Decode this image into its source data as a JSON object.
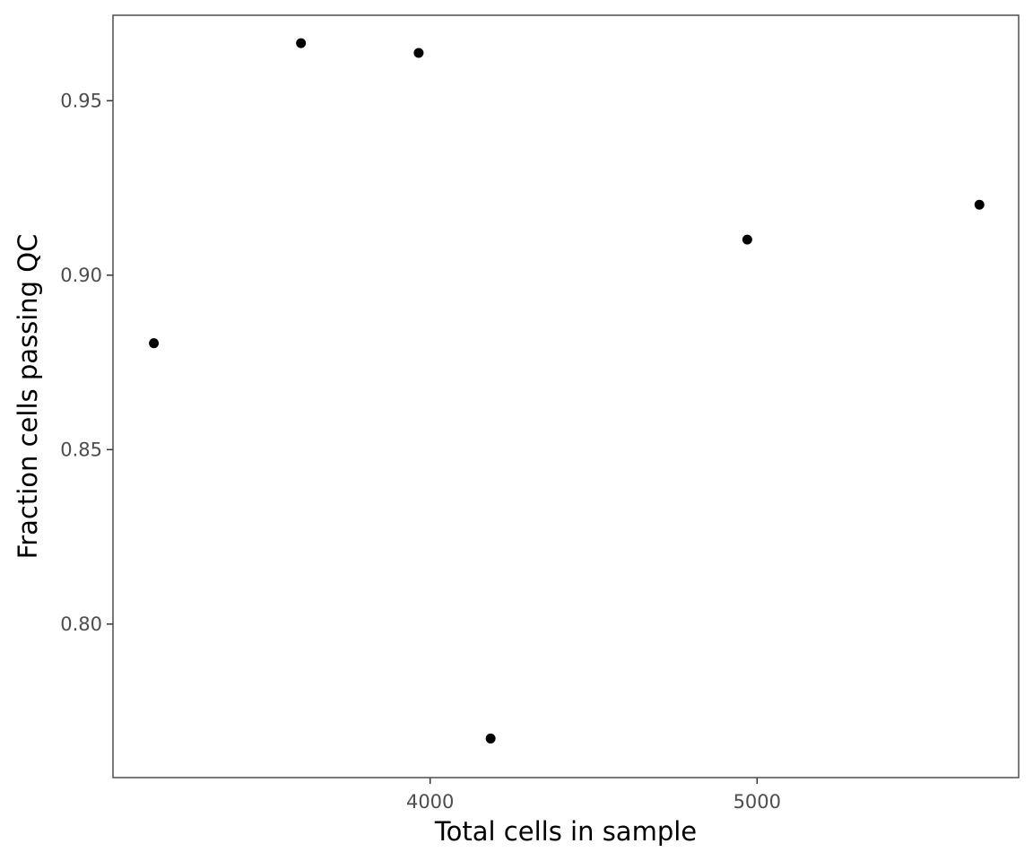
{
  "chart_data": {
    "type": "scatter",
    "title": "",
    "xlabel": "Total cells in sample",
    "ylabel": "Fraction cells passing QC",
    "x": [
      3155,
      3605,
      3965,
      4185,
      4970,
      5680
    ],
    "y": [
      0.8805,
      0.9665,
      0.9637,
      0.7672,
      0.9102,
      0.9202
    ],
    "xlim": [
      3030,
      5800
    ],
    "ylim": [
      0.756,
      0.9745
    ],
    "xticks": [
      4000,
      5000
    ],
    "xtick_labels": [
      "4000",
      "5000"
    ],
    "yticks": [
      0.8,
      0.85,
      0.9,
      0.95
    ],
    "ytick_labels": [
      "0.80",
      "0.85",
      "0.90",
      "0.95"
    ],
    "grid": false,
    "legend": false,
    "colors": {
      "point": "#000000",
      "panel_border": "#4d4d4d",
      "tick": "#333333",
      "tick_label": "#4d4d4d"
    }
  }
}
